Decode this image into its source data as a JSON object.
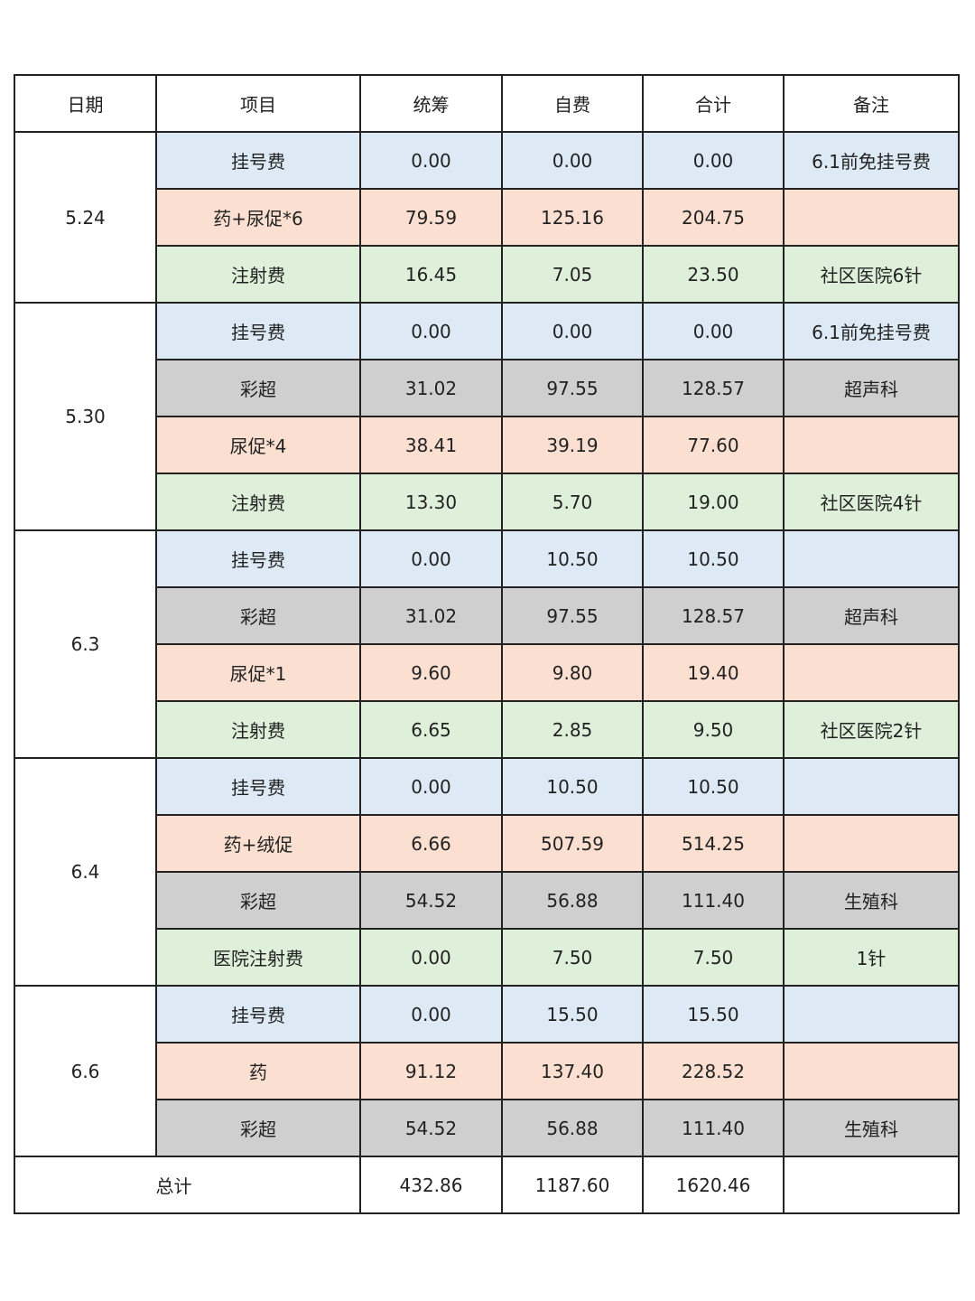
{
  "headers": [
    "日期",
    "项目",
    "统筹",
    "自费",
    "合计",
    "备注"
  ],
  "colors": {
    "blue": "#dde9f5",
    "peach": "#fbe0d2",
    "green": "#dff0da",
    "gray": "#cfcfcf"
  },
  "groups": [
    {
      "date": "5.24",
      "items": [
        {
          "item": "挂号费",
          "tongchou": "0.00",
          "zifei": "0.00",
          "total": "0.00",
          "note": "6.1前免挂号费",
          "color": "blue"
        },
        {
          "item": "药+尿促*6",
          "tongchou": "79.59",
          "zifei": "125.16",
          "total": "204.75",
          "note": "",
          "color": "peach"
        },
        {
          "item": "注射费",
          "tongchou": "16.45",
          "zifei": "7.05",
          "total": "23.50",
          "note": "社区医院6针",
          "color": "green"
        }
      ]
    },
    {
      "date": "5.30",
      "items": [
        {
          "item": "挂号费",
          "tongchou": "0.00",
          "zifei": "0.00",
          "total": "0.00",
          "note": "6.1前免挂号费",
          "color": "blue"
        },
        {
          "item": "彩超",
          "tongchou": "31.02",
          "zifei": "97.55",
          "total": "128.57",
          "note": "超声科",
          "color": "gray"
        },
        {
          "item": "尿促*4",
          "tongchou": "38.41",
          "zifei": "39.19",
          "total": "77.60",
          "note": "",
          "color": "peach"
        },
        {
          "item": "注射费",
          "tongchou": "13.30",
          "zifei": "5.70",
          "total": "19.00",
          "note": "社区医院4针",
          "color": "green"
        }
      ]
    },
    {
      "date": "6.3",
      "items": [
        {
          "item": "挂号费",
          "tongchou": "0.00",
          "zifei": "10.50",
          "total": "10.50",
          "note": "",
          "color": "blue"
        },
        {
          "item": "彩超",
          "tongchou": "31.02",
          "zifei": "97.55",
          "total": "128.57",
          "note": "超声科",
          "color": "gray"
        },
        {
          "item": "尿促*1",
          "tongchou": "9.60",
          "zifei": "9.80",
          "total": "19.40",
          "note": "",
          "color": "peach"
        },
        {
          "item": "注射费",
          "tongchou": "6.65",
          "zifei": "2.85",
          "total": "9.50",
          "note": "社区医院2针",
          "color": "green"
        }
      ]
    },
    {
      "date": "6.4",
      "items": [
        {
          "item": "挂号费",
          "tongchou": "0.00",
          "zifei": "10.50",
          "total": "10.50",
          "note": "",
          "color": "blue"
        },
        {
          "item": "药+绒促",
          "tongchou": "6.66",
          "zifei": "507.59",
          "total": "514.25",
          "note": "",
          "color": "peach"
        },
        {
          "item": "彩超",
          "tongchou": "54.52",
          "zifei": "56.88",
          "total": "111.40",
          "note": "生殖科",
          "color": "gray"
        },
        {
          "item": "医院注射费",
          "tongchou": "0.00",
          "zifei": "7.50",
          "total": "7.50",
          "note": "1针",
          "color": "green"
        }
      ]
    },
    {
      "date": "6.6",
      "items": [
        {
          "item": "挂号费",
          "tongchou": "0.00",
          "zifei": "15.50",
          "total": "15.50",
          "note": "",
          "color": "blue"
        },
        {
          "item": "药",
          "tongchou": "91.12",
          "zifei": "137.40",
          "total": "228.52",
          "note": "",
          "color": "peach"
        },
        {
          "item": "彩超",
          "tongchou": "54.52",
          "zifei": "56.88",
          "total": "111.40",
          "note": "生殖科",
          "color": "gray"
        }
      ]
    }
  ],
  "summary": {
    "label": "总计",
    "tongchou": "432.86",
    "zifei": "1187.60",
    "total": "1620.46",
    "note": ""
  }
}
